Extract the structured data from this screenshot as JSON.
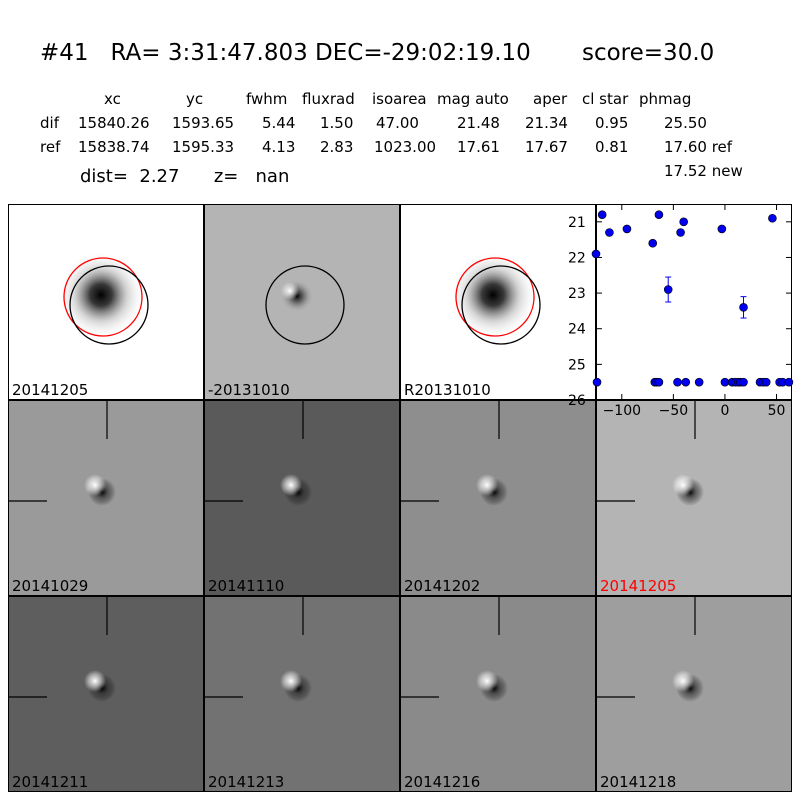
{
  "header": {
    "id": "#41",
    "ra": "RA= 3:31:47.803",
    "dec": "DEC=-29:02:19.10",
    "score": "score=30.0"
  },
  "table": {
    "columns": [
      "xc",
      "yc",
      "fwhm",
      "fluxrad",
      "isoarea",
      "mag auto",
      "aper",
      "cl star",
      "phmag"
    ],
    "rows": [
      {
        "label": "dif",
        "values": [
          "15840.26",
          "1593.65",
          "5.44",
          "1.50",
          "47.00",
          "21.48",
          "21.34",
          "0.95",
          "25.50"
        ]
      },
      {
        "label": "ref",
        "values": [
          "15838.74",
          "1595.33",
          "4.13",
          "2.83",
          "1023.00",
          "17.61",
          "17.67",
          "0.81",
          "17.60 ref"
        ]
      }
    ],
    "extra": "17.52 new"
  },
  "dist_line": {
    "dist": "dist=  2.27",
    "z": "z=   nan"
  },
  "stamps": [
    {
      "label": "20141205",
      "bg": "#ffffff",
      "style": "ref",
      "circles": [
        "red",
        "black"
      ]
    },
    {
      "label": "-20131010",
      "bg": "#b4b4b4",
      "style": "diff",
      "circles": [
        "black"
      ]
    },
    {
      "label": "R20131010",
      "bg": "#ffffff",
      "style": "ref",
      "circles": [
        "red",
        "black"
      ]
    }
  ],
  "epochs": [
    {
      "label": "20141029",
      "bg": "#9a9a9a",
      "highlight": false
    },
    {
      "label": "20141110",
      "bg": "#5a5a5a",
      "highlight": false
    },
    {
      "label": "20141202",
      "bg": "#8e8e8e",
      "highlight": false
    },
    {
      "label": "20141205",
      "bg": "#b4b4b4",
      "highlight": true
    },
    {
      "label": "20141211",
      "bg": "#5e5e5e",
      "highlight": false
    },
    {
      "label": "20141213",
      "bg": "#727272",
      "highlight": false
    },
    {
      "label": "20141216",
      "bg": "#8a8a8a",
      "highlight": false
    },
    {
      "label": "20141218",
      "bg": "#9e9e9e",
      "highlight": false
    }
  ],
  "colors": {
    "point": "#0000ee",
    "circle_red": "#ff0000",
    "circle_black": "#000000",
    "highlight_label": "#ff0000"
  },
  "chart_data": {
    "type": "scatter",
    "xlim": [
      -125,
      65
    ],
    "ylim": [
      26,
      20.5
    ],
    "xticks": [
      -100,
      -50,
      0,
      50
    ],
    "yticks": [
      21,
      22,
      23,
      24,
      25,
      26
    ],
    "grid": false,
    "points": [
      {
        "x": -125,
        "y": 21.9
      },
      {
        "x": -119,
        "y": 20.8
      },
      {
        "x": -112,
        "y": 21.3
      },
      {
        "x": -95,
        "y": 21.2
      },
      {
        "x": -70,
        "y": 21.6
      },
      {
        "x": -64,
        "y": 20.8
      },
      {
        "x": -55,
        "y": 22.9,
        "err": 0.35
      },
      {
        "x": -43,
        "y": 21.3
      },
      {
        "x": -40,
        "y": 21.0
      },
      {
        "x": -3,
        "y": 21.2
      },
      {
        "x": 18,
        "y": 23.4,
        "err": 0.3
      },
      {
        "x": 46,
        "y": 20.9
      }
    ],
    "limits": {
      "y": 25.5,
      "x": [
        -124,
        -68,
        -66,
        -64,
        -46,
        -38,
        -25,
        0,
        7,
        10,
        13,
        15,
        18,
        34,
        37,
        40,
        53,
        56,
        62
      ]
    }
  }
}
